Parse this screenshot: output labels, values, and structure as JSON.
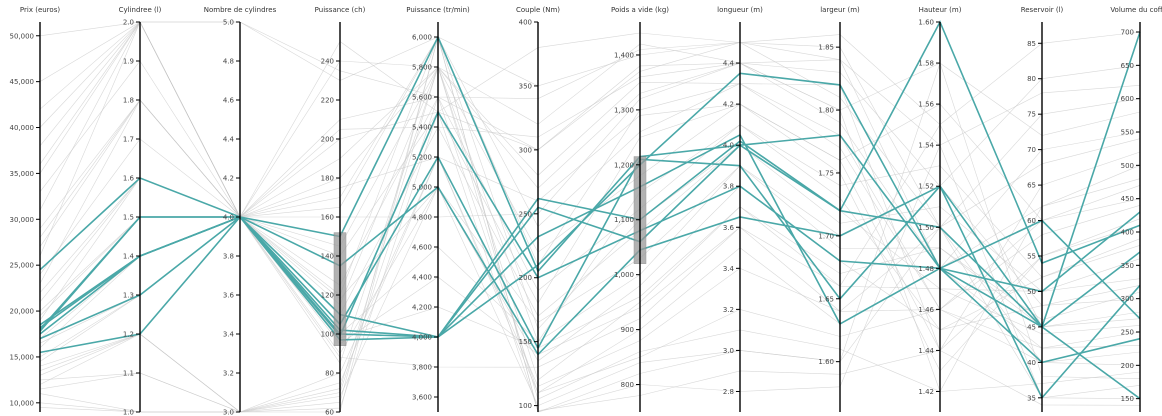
{
  "chart_data": {
    "type": "parallel-coordinates",
    "colors": {
      "selected": "#4aa8a8",
      "context": "#c8c8c8",
      "brush": "#999999",
      "axis": "#000000"
    },
    "axes": [
      {
        "key": "prix",
        "label": "Prix (euros)",
        "domain": [
          9000,
          51500
        ],
        "ticks": [
          10000,
          15000,
          20000,
          25000,
          30000,
          35000,
          40000,
          45000,
          50000
        ],
        "tick_labels": [
          "10,000",
          "15,000",
          "20,000",
          "25,000",
          "30,000",
          "35,000",
          "40,000",
          "45,000",
          "50,000"
        ]
      },
      {
        "key": "cyl",
        "label": "Cylindree (l)",
        "domain": [
          1.0,
          2.0
        ],
        "ticks": [
          1.0,
          1.1,
          1.2,
          1.3,
          1.4,
          1.5,
          1.6,
          1.7,
          1.8,
          1.9,
          2.0
        ],
        "tick_labels": [
          "1.0",
          "1.1",
          "1.2",
          "1.3",
          "1.4",
          "1.5",
          "1.6",
          "1.7",
          "1.8",
          "1.9",
          "2.0"
        ]
      },
      {
        "key": "ncyl",
        "label": "Nombre de cylindres",
        "domain": [
          3.0,
          5.0
        ],
        "ticks": [
          3.0,
          3.2,
          3.4,
          3.6,
          3.8,
          4.0,
          4.2,
          4.4,
          4.6,
          4.8,
          5.0
        ],
        "tick_labels": [
          "3.0",
          "3.2",
          "3.4",
          "3.6",
          "3.8",
          "4.0",
          "4.2",
          "4.4",
          "4.6",
          "4.8",
          "5.0"
        ]
      },
      {
        "key": "pch",
        "label": "Puissance (ch)",
        "domain": [
          60,
          260
        ],
        "ticks": [
          60,
          80,
          100,
          120,
          140,
          160,
          180,
          200,
          220,
          240
        ],
        "tick_labels": [
          "60",
          "80",
          "100",
          "120",
          "140",
          "160",
          "180",
          "200",
          "220",
          "240"
        ]
      },
      {
        "key": "ptr",
        "label": "Puissance (tr/min)",
        "domain": [
          3500,
          6100
        ],
        "ticks": [
          3600,
          3800,
          4000,
          4200,
          4400,
          4600,
          4800,
          5000,
          5200,
          5400,
          5600,
          5800,
          6000
        ],
        "tick_labels": [
          "3,600",
          "3,800",
          "4,000",
          "4,200",
          "4,400",
          "4,600",
          "4,800",
          "5,000",
          "5,200",
          "5,400",
          "5,600",
          "5,800",
          "6,000"
        ]
      },
      {
        "key": "couple",
        "label": "Couple (Nm)",
        "domain": [
          95,
          400
        ],
        "ticks": [
          100,
          150,
          200,
          250,
          300,
          350,
          400
        ],
        "tick_labels": [
          "100",
          "150",
          "200",
          "250",
          "300",
          "350",
          "400"
        ]
      },
      {
        "key": "poids",
        "label": "Poids a vide (kg)",
        "domain": [
          750,
          1460
        ],
        "ticks": [
          800,
          900,
          1000,
          1100,
          1200,
          1300,
          1400
        ],
        "tick_labels": [
          "800",
          "900",
          "1,000",
          "1,100",
          "1,200",
          "1,300",
          "1,400"
        ]
      },
      {
        "key": "longueur",
        "label": "longueur (m)",
        "domain": [
          2.7,
          4.6
        ],
        "ticks": [
          2.8,
          3.0,
          3.2,
          3.4,
          3.6,
          3.8,
          4.0,
          4.2,
          4.4
        ],
        "tick_labels": [
          "2.8",
          "3.0",
          "3.2",
          "3.4",
          "3.6",
          "3.8",
          "4.0",
          "4.2",
          "4.4"
        ]
      },
      {
        "key": "largeur",
        "label": "largeur (m)",
        "domain": [
          1.56,
          1.87
        ],
        "ticks": [
          1.6,
          1.65,
          1.7,
          1.75,
          1.8,
          1.85
        ],
        "tick_labels": [
          "1.60",
          "1.65",
          "1.70",
          "1.75",
          "1.80",
          "1.85"
        ]
      },
      {
        "key": "hauteur",
        "label": "Hauteur (m)",
        "domain": [
          1.41,
          1.6
        ],
        "ticks": [
          1.42,
          1.44,
          1.46,
          1.48,
          1.5,
          1.52,
          1.54,
          1.56,
          1.58,
          1.6
        ],
        "tick_labels": [
          "1.42",
          "1.44",
          "1.46",
          "1.48",
          "1.50",
          "1.52",
          "1.54",
          "1.56",
          "1.58",
          "1.60"
        ]
      },
      {
        "key": "reservoir",
        "label": "Reservoir (l)",
        "domain": [
          33,
          88
        ],
        "ticks": [
          35,
          40,
          45,
          50,
          55,
          60,
          65,
          70,
          75,
          80,
          85
        ],
        "tick_labels": [
          "35",
          "40",
          "45",
          "50",
          "55",
          "60",
          "65",
          "70",
          "75",
          "80",
          "85"
        ]
      },
      {
        "key": "coffre",
        "label": "Volume du coffre",
        "domain": [
          130,
          715
        ],
        "ticks": [
          150,
          200,
          250,
          300,
          350,
          400,
          450,
          500,
          550,
          600,
          650,
          700
        ],
        "tick_labels": [
          "150",
          "200",
          "250",
          "300",
          "350",
          "400",
          "450",
          "500",
          "550",
          "600",
          "650",
          "700"
        ]
      }
    ],
    "brushes": [
      {
        "axis": "pch",
        "range": [
          94,
          152
        ]
      },
      {
        "axis": "poids",
        "range": [
          1020,
          1215
        ]
      }
    ],
    "selected": [
      [
        18000,
        1.5,
        4.0,
        102,
        4000,
        210,
        1200,
        4.35,
        1.82,
        1.48,
        45,
        700
      ],
      [
        24500,
        1.6,
        4.0,
        150,
        6000,
        205,
        1215,
        4.0,
        1.72,
        1.6,
        54,
        410
      ],
      [
        17500,
        1.4,
        4.0,
        105,
        5200,
        145,
        1210,
        3.9,
        1.65,
        1.52,
        45,
        150
      ],
      [
        15500,
        1.2,
        4.0,
        110,
        4000,
        255,
        1060,
        4.0,
        1.78,
        1.48,
        40,
        240
      ],
      [
        17800,
        1.5,
        4.0,
        135,
        5000,
        140,
        1045,
        3.65,
        1.7,
        1.52,
        35,
        320
      ],
      [
        18200,
        1.4,
        4.0,
        99,
        5500,
        200,
        1080,
        3.8,
        1.68,
        1.48,
        60,
        270
      ],
      [
        17000,
        1.3,
        4.0,
        100,
        4000,
        232,
        1160,
        4.05,
        1.63,
        1.48,
        50,
        430
      ],
      [
        18500,
        1.4,
        4.0,
        97,
        4000,
        262,
        1100,
        4.02,
        1.72,
        1.5,
        45,
        370
      ]
    ],
    "context": [
      [
        12000,
        1.2,
        3.0,
        75,
        5200,
        110,
        850,
        3.2,
        1.62,
        1.46,
        40,
        200
      ],
      [
        11000,
        1.0,
        3.0,
        65,
        6000,
        95,
        820,
        3.0,
        1.6,
        1.5,
        35,
        170
      ],
      [
        13000,
        1.2,
        3.0,
        70,
        5600,
        110,
        900,
        3.5,
        1.63,
        1.48,
        42,
        250
      ],
      [
        14500,
        1.3,
        4.0,
        85,
        5800,
        120,
        950,
        3.7,
        1.66,
        1.55,
        45,
        280
      ],
      [
        16000,
        1.4,
        4.0,
        90,
        5000,
        135,
        980,
        3.8,
        1.68,
        1.45,
        48,
        300
      ],
      [
        19000,
        1.6,
        4.0,
        120,
        6000,
        160,
        1100,
        4.0,
        1.72,
        1.47,
        50,
        330
      ],
      [
        21000,
        1.6,
        4.0,
        115,
        5800,
        150,
        1150,
        4.1,
        1.74,
        1.53,
        52,
        380
      ],
      [
        23000,
        1.8,
        4.0,
        140,
        5500,
        180,
        1250,
        4.2,
        1.76,
        1.44,
        55,
        420
      ],
      [
        26000,
        2.0,
        4.0,
        170,
        6000,
        210,
        1300,
        4.3,
        1.78,
        1.46,
        60,
        450
      ],
      [
        28000,
        1.8,
        4.0,
        160,
        4800,
        250,
        1320,
        4.4,
        1.8,
        1.42,
        62,
        500
      ],
      [
        31000,
        2.0,
        4.0,
        190,
        5800,
        280,
        1350,
        4.3,
        1.82,
        1.44,
        65,
        520
      ],
      [
        35000,
        2.0,
        4.0,
        200,
        5500,
        300,
        1380,
        4.4,
        1.84,
        1.48,
        70,
        550
      ],
      [
        40000,
        2.0,
        5.0,
        230,
        6000,
        350,
        1400,
        4.5,
        1.85,
        1.5,
        75,
        600
      ],
      [
        45000,
        2.0,
        4.0,
        240,
        5800,
        320,
        1420,
        4.4,
        1.83,
        1.52,
        80,
        650
      ],
      [
        50000,
        2.0,
        4.0,
        250,
        5500,
        380,
        1440,
        4.5,
        1.86,
        1.55,
        85,
        700
      ],
      [
        10000,
        1.0,
        3.0,
        60,
        6000,
        95,
        800,
        2.8,
        1.58,
        1.54,
        35,
        150
      ],
      [
        12500,
        1.1,
        3.0,
        68,
        5000,
        100,
        840,
        3.0,
        1.6,
        1.58,
        38,
        180
      ],
      [
        13500,
        1.2,
        3.0,
        80,
        5200,
        115,
        880,
        3.4,
        1.64,
        1.5,
        40,
        220
      ],
      [
        15000,
        1.3,
        4.0,
        95,
        4400,
        140,
        940,
        3.6,
        1.66,
        1.47,
        44,
        260
      ],
      [
        17000,
        1.4,
        4.0,
        100,
        4600,
        150,
        1000,
        3.9,
        1.69,
        1.49,
        46,
        310
      ],
      [
        20000,
        1.5,
        4.0,
        110,
        5400,
        170,
        1080,
        4.0,
        1.71,
        1.51,
        50,
        360
      ],
      [
        22000,
        1.6,
        4.0,
        125,
        5600,
        190,
        1120,
        4.1,
        1.73,
        1.45,
        52,
        390
      ],
      [
        24000,
        1.7,
        4.0,
        145,
        5800,
        220,
        1180,
        4.2,
        1.75,
        1.43,
        55,
        410
      ],
      [
        27000,
        1.8,
        4.0,
        165,
        6000,
        240,
        1260,
        4.3,
        1.77,
        1.46,
        58,
        440
      ],
      [
        33000,
        1.9,
        4.0,
        180,
        5800,
        270,
        1330,
        4.4,
        1.79,
        1.48,
        62,
        480
      ],
      [
        38000,
        2.0,
        4.0,
        210,
        5600,
        300,
        1370,
        4.5,
        1.81,
        1.5,
        68,
        540
      ],
      [
        9500,
        1.0,
        3.0,
        62,
        5500,
        96,
        780,
        2.9,
        1.59,
        1.44,
        34,
        140
      ],
      [
        11500,
        1.1,
        3.0,
        72,
        5800,
        105,
        860,
        3.1,
        1.61,
        1.42,
        37,
        190
      ],
      [
        14000,
        1.2,
        4.0,
        88,
        3800,
        130,
        920,
        3.6,
        1.64,
        1.46,
        42,
        230
      ],
      [
        16500,
        1.3,
        4.0,
        98,
        4200,
        145,
        960,
        3.7,
        1.67,
        1.49,
        45,
        270
      ],
      [
        19500,
        1.5,
        4.0,
        118,
        5000,
        165,
        1030,
        3.9,
        1.7,
        1.52,
        48,
        320
      ],
      [
        29000,
        1.8,
        4.0,
        175,
        5200,
        260,
        1290,
        4.2,
        1.76,
        1.56,
        60,
        470
      ],
      [
        36000,
        2.0,
        4.0,
        205,
        5400,
        310,
        1360,
        4.4,
        1.8,
        1.58,
        72,
        580
      ],
      [
        42000,
        2.0,
        5.0,
        235,
        5600,
        340,
        1410,
        4.5,
        1.84,
        1.54,
        78,
        620
      ]
    ]
  }
}
